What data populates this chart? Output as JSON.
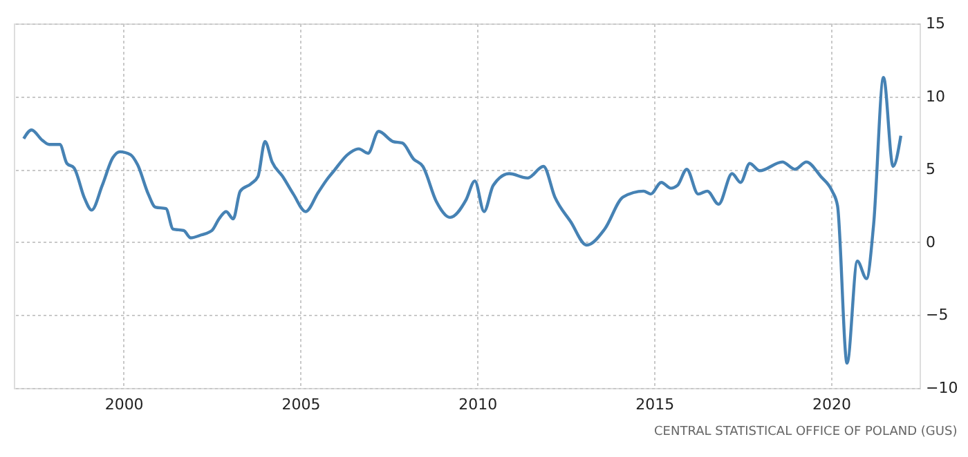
{
  "chart_data": {
    "type": "line",
    "x": [
      1997.18,
      1997.4,
      1997.7,
      1997.9,
      1998.2,
      1998.4,
      1998.6,
      1998.9,
      1999.1,
      1999.4,
      1999.7,
      1999.9,
      2000.2,
      2000.4,
      2000.7,
      2000.9,
      2001.2,
      2001.4,
      2001.7,
      2001.9,
      2002.2,
      2002.5,
      2002.7,
      2002.9,
      2003.1,
      2003.3,
      2003.6,
      2003.8,
      2004.0,
      2004.2,
      2004.5,
      2004.8,
      2005.15,
      2005.5,
      2005.75,
      2005.95,
      2006.33,
      2006.65,
      2006.91,
      2007.21,
      2007.62,
      2007.88,
      2008.2,
      2008.46,
      2008.84,
      2009.23,
      2009.68,
      2009.93,
      2010.19,
      2010.45,
      2010.9,
      2011.42,
      2011.87,
      2012.19,
      2012.64,
      2013.09,
      2013.6,
      2014.12,
      2014.7,
      2014.9,
      2015.2,
      2015.47,
      2015.66,
      2015.92,
      2016.24,
      2016.5,
      2016.82,
      2017.2,
      2017.44,
      2017.7,
      2017.98,
      2018.62,
      2018.98,
      2019.3,
      2019.71,
      2020.03,
      2020.18,
      2020.45,
      2020.74,
      2021.0,
      2021.2,
      2021.48,
      2021.75,
      2021.97
    ],
    "series": [
      {
        "color": "#4682b4",
        "values": [
          7.1,
          7.7,
          7.0,
          6.7,
          6.7,
          5.4,
          5.1,
          3.0,
          2.2,
          3.9,
          5.8,
          6.2,
          6.0,
          5.3,
          3.3,
          2.4,
          2.3,
          0.9,
          0.8,
          0.3,
          0.5,
          0.8,
          1.6,
          2.1,
          1.6,
          3.5,
          4.0,
          4.5,
          6.9,
          5.5,
          4.5,
          3.3,
          2.1,
          3.4,
          4.3,
          4.9,
          6.0,
          6.4,
          6.1,
          7.6,
          6.9,
          6.8,
          5.7,
          5.2,
          2.8,
          1.7,
          2.9,
          4.2,
          2.1,
          3.9,
          4.7,
          4.4,
          5.2,
          3.1,
          1.4,
          -0.2,
          0.9,
          3.1,
          3.5,
          3.3,
          4.1,
          3.7,
          3.9,
          5.0,
          3.3,
          3.5,
          2.6,
          4.7,
          4.1,
          5.4,
          4.9,
          5.5,
          5.0,
          5.5,
          4.5,
          3.5,
          2.5,
          -8.3,
          -1.3,
          -2.5,
          1.2,
          11.3,
          5.2,
          7.3
        ]
      }
    ],
    "xlim": [
      1996.9,
      2022.5
    ],
    "xticks": [
      2000,
      2005,
      2010,
      2015,
      2020
    ],
    "ylim": [
      -10,
      15
    ],
    "yticks": [
      -10,
      -5,
      0,
      5,
      10,
      15
    ],
    "grid": true,
    "annotations": [
      "CENTRAL STATISTICAL OFFICE OF POLAND (GUS)"
    ]
  }
}
